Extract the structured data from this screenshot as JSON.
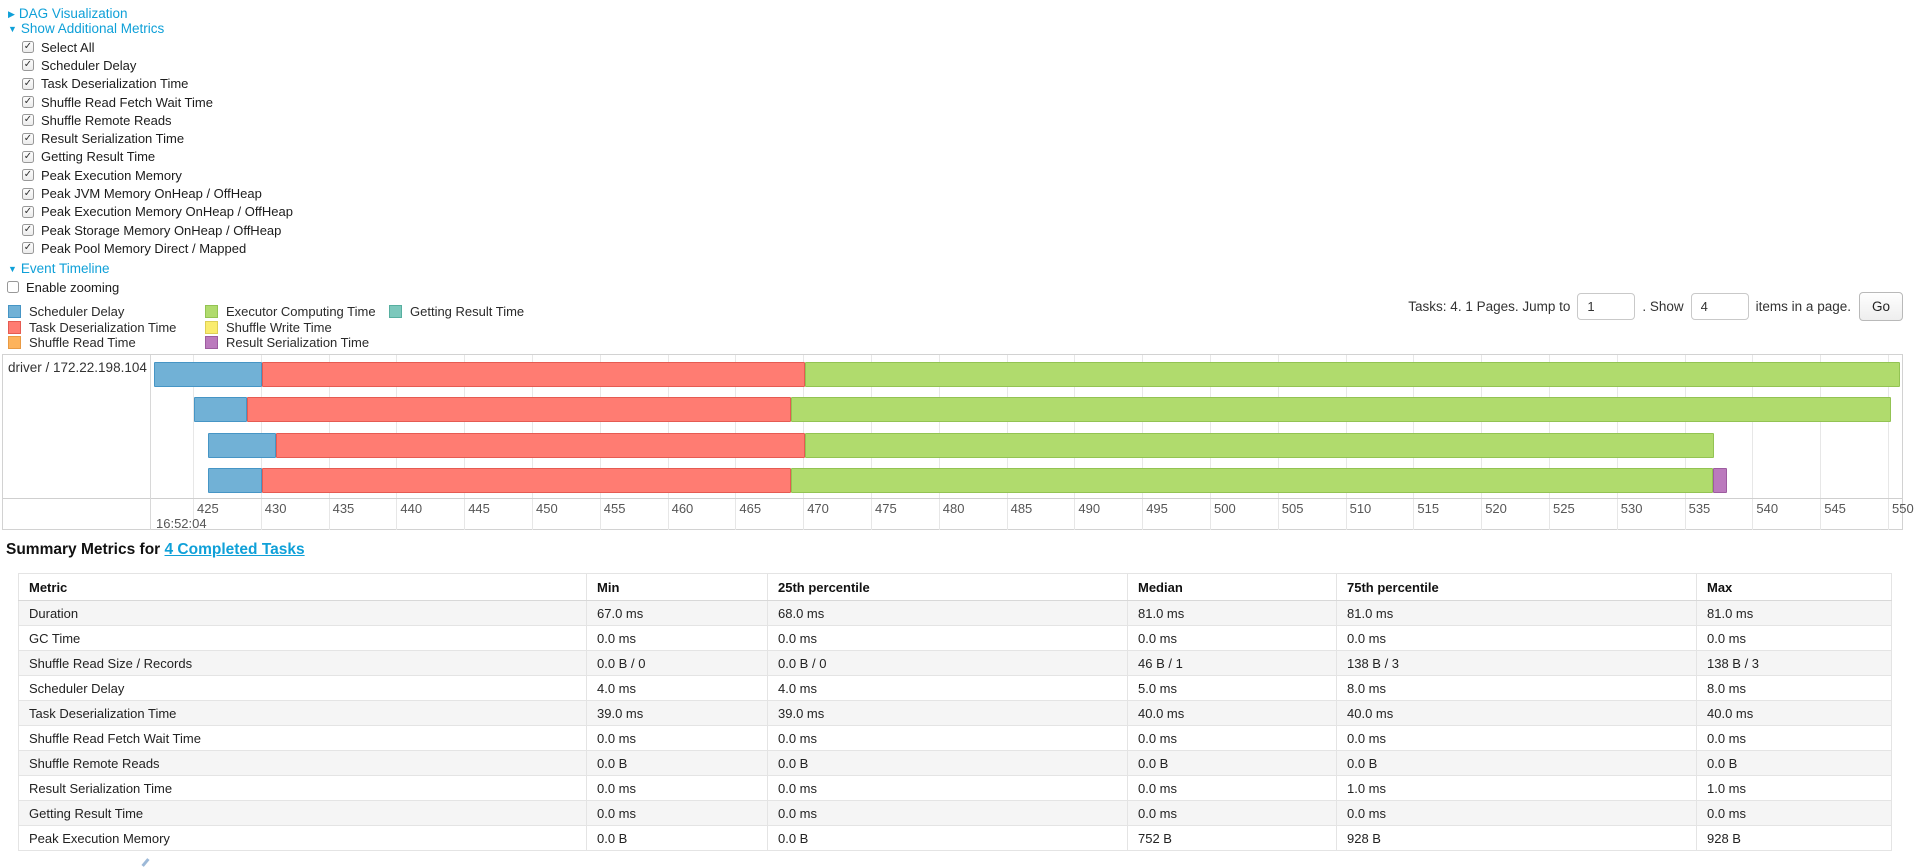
{
  "app": {
    "background": "#ffffff",
    "accent": "#0fa0d8"
  },
  "dag_section": {
    "label": "DAG Visualization",
    "arrow_icon": "▶"
  },
  "metrics_panel": {
    "label": "Show Additional Metrics",
    "arrow_icon": "▼",
    "items": [
      {
        "label": "Select All",
        "checked": true
      },
      {
        "label": "Scheduler Delay",
        "checked": true
      },
      {
        "label": "Task Deserialization Time",
        "checked": true
      },
      {
        "label": "Shuffle Read Fetch Wait Time",
        "checked": true
      },
      {
        "label": "Shuffle Remote Reads",
        "checked": true
      },
      {
        "label": "Result Serialization Time",
        "checked": true
      },
      {
        "label": "Getting Result Time",
        "checked": true
      },
      {
        "label": "Peak Execution Memory",
        "checked": true
      },
      {
        "label": "Peak JVM Memory OnHeap / OffHeap",
        "checked": true
      },
      {
        "label": "Peak Execution Memory OnHeap / OffHeap",
        "checked": true
      },
      {
        "label": "Peak Storage Memory OnHeap / OffHeap",
        "checked": true
      },
      {
        "label": "Peak Pool Memory Direct / Mapped",
        "checked": true
      }
    ]
  },
  "event_timeline_section": {
    "label": "Event Timeline",
    "arrow_icon": "▼",
    "enable_zooming": {
      "label": "Enable zooming",
      "checked": false
    }
  },
  "pagination": {
    "summary_text": "Tasks: 4. 1 Pages. Jump to",
    "jump_value": "1",
    "mid_text": ". Show",
    "page_size_value": "4",
    "suffix_text": "items in a page.",
    "go_label": "Go"
  },
  "chart_data": {
    "type": "timeline",
    "title": "Event Timeline",
    "group": "driver / 172.22.198.104",
    "time_anchor_label": "16:52:04",
    "axis": {
      "unit": "ms",
      "ticks": [
        425,
        430,
        435,
        440,
        445,
        450,
        455,
        460,
        465,
        470,
        475,
        480,
        485,
        490,
        495,
        500,
        505,
        510,
        515,
        520,
        525,
        530,
        535,
        540,
        545,
        550
      ]
    },
    "series": {
      "scheduler_delay": {
        "label": "Scheduler Delay",
        "fill": "#71B1D6",
        "border": "#4695C5"
      },
      "task_deserialization": {
        "label": "Task Deserialization Time",
        "fill": "#FF7C72",
        "border": "#E55B52"
      },
      "shuffle_read": {
        "label": "Shuffle Read Time",
        "fill": "#FDB35C",
        "border": "#E89A44"
      },
      "executor_computing": {
        "label": "Executor Computing Time",
        "fill": "#B0DB6D",
        "border": "#93C353"
      },
      "shuffle_write": {
        "label": "Shuffle Write Time",
        "fill": "#FAEC6E",
        "border": "#DECF55"
      },
      "result_serialization": {
        "label": "Result Serialization Time",
        "fill": "#BB7ABD",
        "border": "#9D5C9F"
      },
      "getting_result": {
        "label": "Getting Result Time",
        "fill": "#7CC8BC",
        "border": "#57AFA0"
      }
    },
    "legend_columns": [
      [
        "scheduler_delay",
        "task_deserialization",
        "shuffle_read"
      ],
      [
        "executor_computing",
        "shuffle_write",
        "result_serialization"
      ],
      [
        "getting_result"
      ]
    ],
    "tasks": [
      {
        "segments": [
          {
            "key": "scheduler_delay",
            "start": 422.1,
            "end": 430.1
          },
          {
            "key": "task_deserialization",
            "start": 430.1,
            "end": 470.1
          },
          {
            "key": "executor_computing",
            "start": 470.1,
            "end": 550.9
          }
        ]
      },
      {
        "segments": [
          {
            "key": "scheduler_delay",
            "start": 425.1,
            "end": 429.0
          },
          {
            "key": "task_deserialization",
            "start": 429.0,
            "end": 469.1
          },
          {
            "key": "executor_computing",
            "start": 469.1,
            "end": 550.2
          }
        ]
      },
      {
        "segments": [
          {
            "key": "scheduler_delay",
            "start": 426.1,
            "end": 431.1
          },
          {
            "key": "task_deserialization",
            "start": 431.1,
            "end": 470.1
          },
          {
            "key": "executor_computing",
            "start": 470.1,
            "end": 537.2
          }
        ]
      },
      {
        "segments": [
          {
            "key": "scheduler_delay",
            "start": 426.1,
            "end": 430.1
          },
          {
            "key": "task_deserialization",
            "start": 430.1,
            "end": 469.1
          },
          {
            "key": "executor_computing",
            "start": 469.1,
            "end": 537.1
          },
          {
            "key": "result_serialization",
            "start": 537.1,
            "end": 538.1
          }
        ]
      }
    ]
  },
  "summary_metrics": {
    "title_prefix": "Summary Metrics for ",
    "title_link": "4 Completed Tasks",
    "table": {
      "headers": [
        "Metric",
        "Min",
        "25th percentile",
        "Median",
        "75th percentile",
        "Max"
      ],
      "rows": [
        [
          "Duration",
          "67.0 ms",
          "68.0 ms",
          "81.0 ms",
          "81.0 ms",
          "81.0 ms"
        ],
        [
          "GC Time",
          "0.0 ms",
          "0.0 ms",
          "0.0 ms",
          "0.0 ms",
          "0.0 ms"
        ],
        [
          "Shuffle Read Size / Records",
          "0.0 B / 0",
          "0.0 B / 0",
          "46 B / 1",
          "138 B / 3",
          "138 B / 3"
        ],
        [
          "Scheduler Delay",
          "4.0 ms",
          "4.0 ms",
          "5.0 ms",
          "8.0 ms",
          "8.0 ms"
        ],
        [
          "Task Deserialization Time",
          "39.0 ms",
          "39.0 ms",
          "40.0 ms",
          "40.0 ms",
          "40.0 ms"
        ],
        [
          "Shuffle Read Fetch Wait Time",
          "0.0 ms",
          "0.0 ms",
          "0.0 ms",
          "0.0 ms",
          "0.0 ms"
        ],
        [
          "Shuffle Remote Reads",
          "0.0 B",
          "0.0 B",
          "0.0 B",
          "0.0 B",
          "0.0 B"
        ],
        [
          "Result Serialization Time",
          "0.0 ms",
          "0.0 ms",
          "0.0 ms",
          "1.0 ms",
          "1.0 ms"
        ],
        [
          "Getting Result Time",
          "0.0 ms",
          "0.0 ms",
          "0.0 ms",
          "0.0 ms",
          "0.0 ms"
        ],
        [
          "Peak Execution Memory",
          "0.0 B",
          "0.0 B",
          "752 B",
          "928 B",
          "928 B"
        ]
      ]
    }
  }
}
